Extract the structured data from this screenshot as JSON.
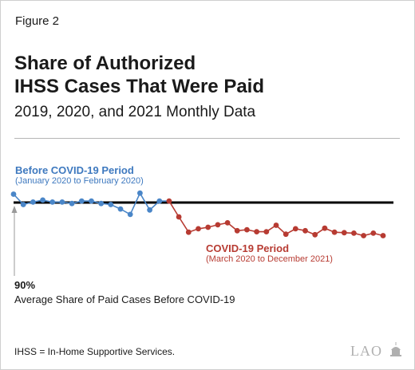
{
  "figure_label": "Figure 2",
  "title_line1": "Share of Authorized",
  "title_line2": "IHSS Cases That Were Paid",
  "subtitle": "2019, 2020, and 2021 Monthly Data",
  "annotations": {
    "before_title": "Before COVID-19 Period",
    "before_sub": "(January 2020 to February 2020)",
    "covid_title": "COVID-19 Period",
    "covid_sub": "(March 2020 to December 2021)",
    "reference_value": "90%",
    "reference_label": "Average Share of Paid Cases Before COVID-19"
  },
  "footnote": "IHSS = In-Home Supportive Services.",
  "logo_text": "LAO",
  "colors": {
    "before": "#4a86c8",
    "covid": "#b73b32",
    "reference": "#000000"
  },
  "chart_data": {
    "type": "line",
    "reference_line": 90,
    "ylim": [
      81,
      93
    ],
    "series": [
      {
        "name": "Before COVID-19 Period",
        "values": [
          91.7,
          89.6,
          90.1,
          90.5,
          90.1,
          90.1,
          89.8,
          90.3,
          90.3,
          89.8,
          89.6,
          88.7,
          87.6,
          91.9,
          88.5,
          90.3
        ]
      },
      {
        "name": "COVID-19 Period",
        "values": [
          90.3,
          87.1,
          84.0,
          84.7,
          85.0,
          85.5,
          85.9,
          84.3,
          84.5,
          84.1,
          84.1,
          85.4,
          83.6,
          84.7,
          84.3,
          83.5,
          84.8,
          84.0,
          83.9,
          83.8,
          83.3,
          83.8,
          83.3
        ]
      }
    ]
  }
}
